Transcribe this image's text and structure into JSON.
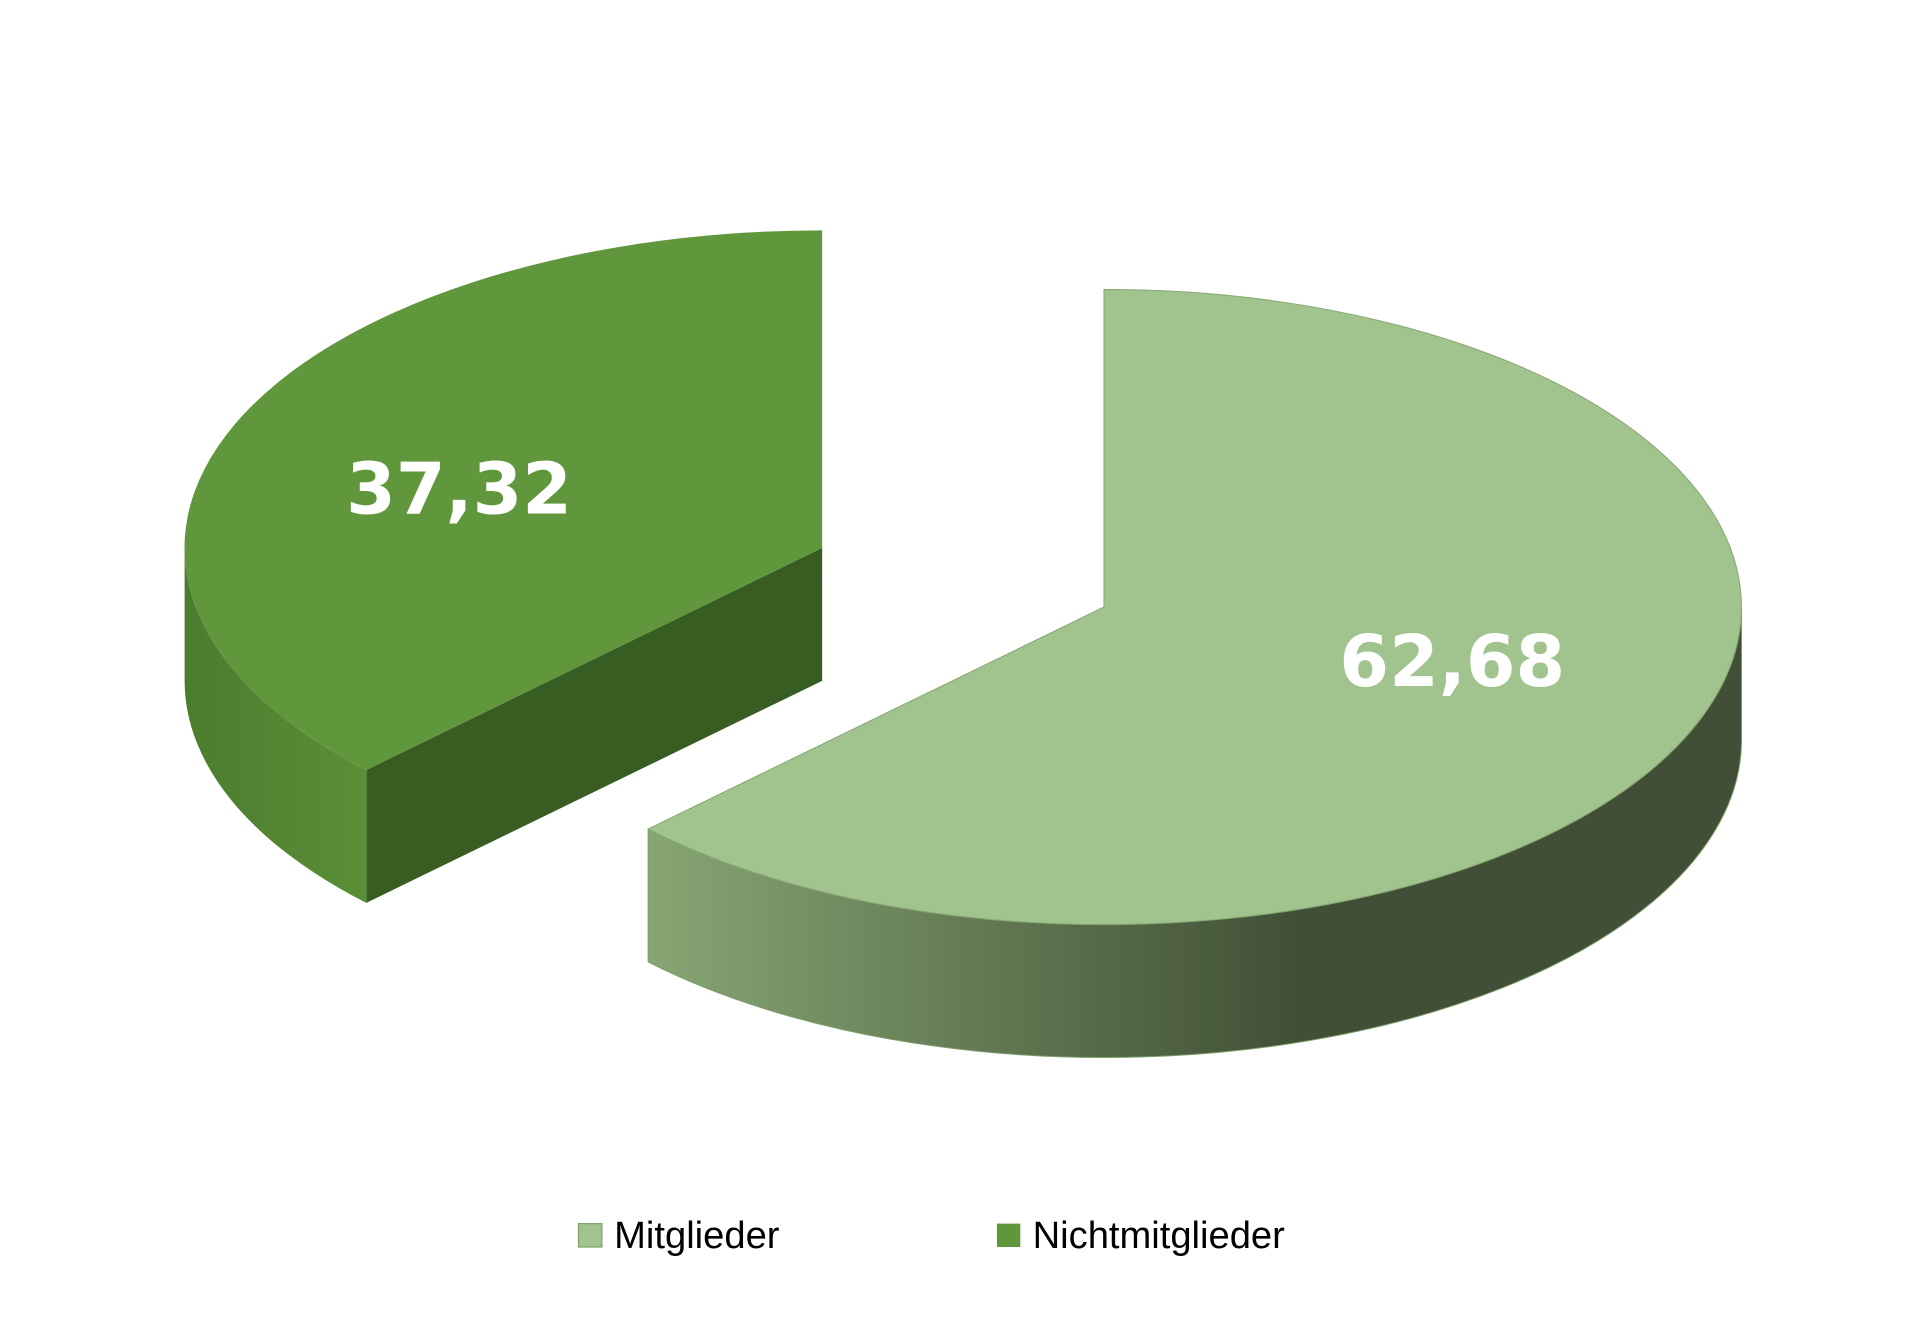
{
  "chart_data": {
    "type": "pie",
    "style": "3d-exploded",
    "slices": [
      {
        "name": "Mitglieder",
        "value": 62.68,
        "label": "62,68",
        "color": "#A1C38D"
      },
      {
        "name": "Nichtmitglieder",
        "value": 37.32,
        "label": "37,32",
        "color": "#61973C"
      }
    ],
    "legend": {
      "position": "bottom",
      "entries": [
        "Mitglieder",
        "Nichtmitglieder"
      ]
    }
  }
}
